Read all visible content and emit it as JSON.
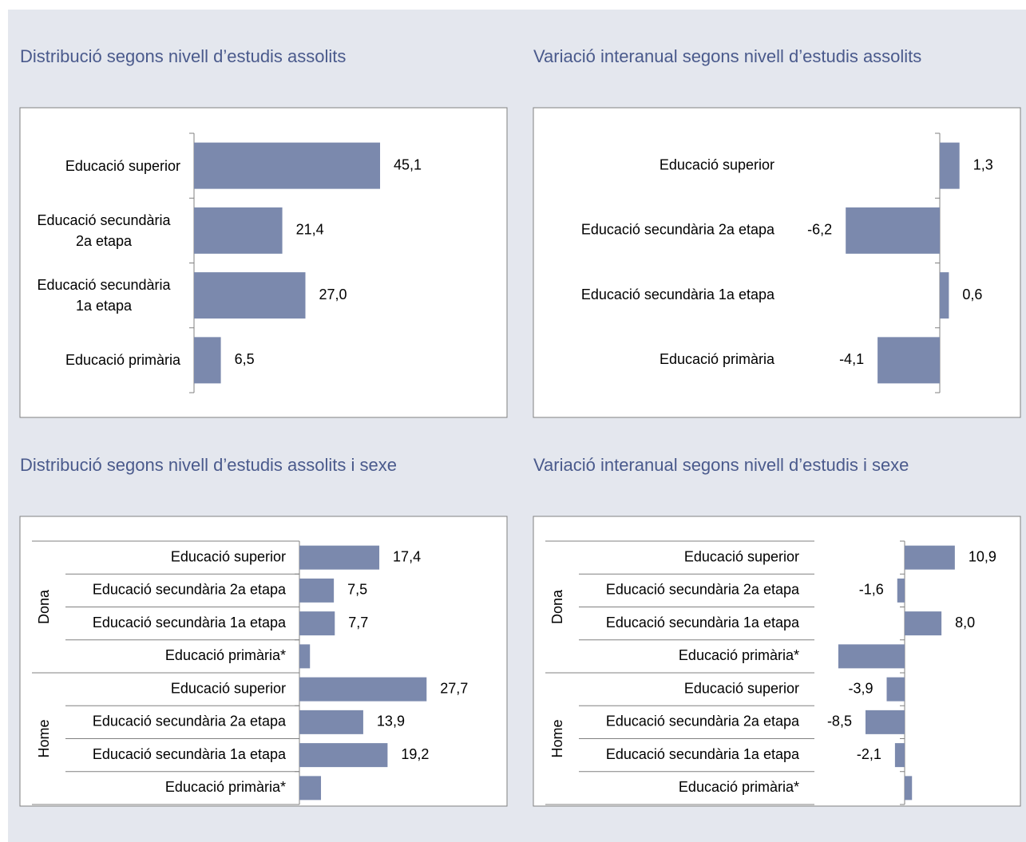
{
  "chart_data": [
    {
      "type": "bar",
      "orientation": "horizontal",
      "title": "Distribució segons nivell d’estudis assolits",
      "categories": [
        "Educació superior",
        "Educació secundària 2a etapa",
        "Educació secundària 1a etapa",
        "Educació primària"
      ],
      "values": [
        45.1,
        21.4,
        27.0,
        6.5
      ],
      "value_labels": [
        "45,1",
        "21,4",
        "27,0",
        "6,5"
      ],
      "color": "#7b89ad",
      "xlim": [
        0,
        60
      ]
    },
    {
      "type": "bar",
      "orientation": "horizontal",
      "title": "Variació interanual segons nivell d’estudis assolits",
      "categories": [
        "Educació superior",
        "Educació secundària 2a etapa",
        "Educació secundària 1a etapa",
        "Educació primària"
      ],
      "values": [
        1.3,
        -6.2,
        0.6,
        -4.1
      ],
      "value_labels": [
        "1,3",
        "-6,2",
        "0,6",
        "-4,1"
      ],
      "color": "#7b89ad",
      "xlim": [
        -8,
        4
      ]
    },
    {
      "type": "bar",
      "orientation": "horizontal",
      "title": "Distribució segons nivell d’estudis assolits i sexe",
      "groups": [
        "Dona",
        "Home"
      ],
      "categories": [
        "Educació superior",
        "Educació secundària 2a etapa",
        "Educació secundària 1a etapa",
        "Educació primària*",
        "Educació superior",
        "Educació secundària 2a etapa",
        "Educació secundària 1a etapa",
        "Educació primària*"
      ],
      "values": [
        17.4,
        7.5,
        7.7,
        2.3,
        27.7,
        13.9,
        19.2,
        4.7
      ],
      "value_labels": [
        "17,4",
        "7,5",
        "7,7",
        null,
        "27,7",
        "13,9",
        "19,2",
        null
      ],
      "color": "#7b89ad",
      "xlim": [
        0,
        40
      ]
    },
    {
      "type": "bar",
      "orientation": "horizontal",
      "title": "Variació interanual segons nivell d’estudis i sexe",
      "groups": [
        "Dona",
        "Home"
      ],
      "categories": [
        "Educació superior",
        "Educació secundària 2a etapa",
        "Educació secundària 1a etapa",
        "Educació primària*",
        "Educació superior",
        "Educació secundària 2a etapa",
        "Educació secundària 1a etapa",
        "Educació primària*"
      ],
      "values": [
        10.9,
        -1.6,
        8.0,
        -14.4,
        -3.9,
        -8.5,
        -2.1,
        1.6
      ],
      "value_labels": [
        "10,9",
        "-1,6",
        "8,0",
        null,
        "-3,9",
        "-8,5",
        "-2,1",
        null
      ],
      "color": "#7b89ad",
      "xlim": [
        -15,
        15
      ]
    }
  ]
}
